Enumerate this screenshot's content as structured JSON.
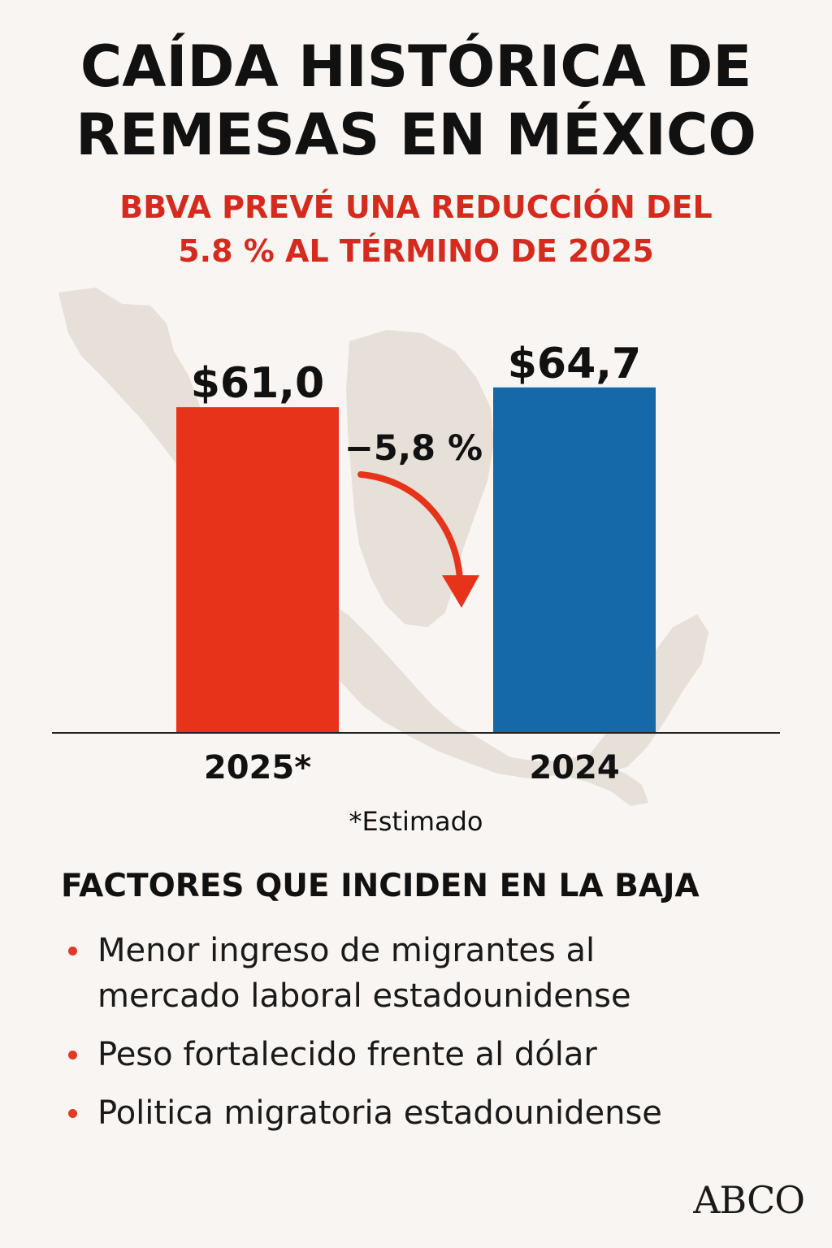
{
  "header": {
    "title_line1": "CAÍDA HISTÓRICA DE",
    "title_line2": "REMESAS EN MÉXICO",
    "subtitle_line1": "BBVA PREVÉ UNA REDUCCIÓN DEL",
    "subtitle_line2": "5.8 % AL TÉRMINO DE 2025"
  },
  "chart_data": {
    "type": "bar",
    "categories": [
      "2025*",
      "2024"
    ],
    "values": [
      61.0,
      64.7
    ],
    "value_labels": [
      "$61,0",
      "$64,7"
    ],
    "colors": [
      "#e8331b",
      "#1569a8"
    ],
    "change_label": "−5,8 %",
    "note": "*Estimado",
    "ylim": [
      0,
      70
    ]
  },
  "factors": {
    "title": "FACTORES QUE INCIDEN EN LA BAJA",
    "items": [
      {
        "line1": "Menor ingreso de migrantes al",
        "line2": "mercado laboral estadounidense"
      },
      {
        "line1": "Peso fortalecido frente al dólar",
        "line2": ""
      },
      {
        "line1": "Politica migratoria estadounidense",
        "line2": ""
      }
    ]
  },
  "brand": {
    "logo_text": "ABCO"
  },
  "colors": {
    "background": "#f8f5f2",
    "accent_red": "#d52b1e",
    "bar_red": "#e8331b",
    "bar_blue": "#1569a8",
    "map_fill": "#e7e0d9"
  }
}
